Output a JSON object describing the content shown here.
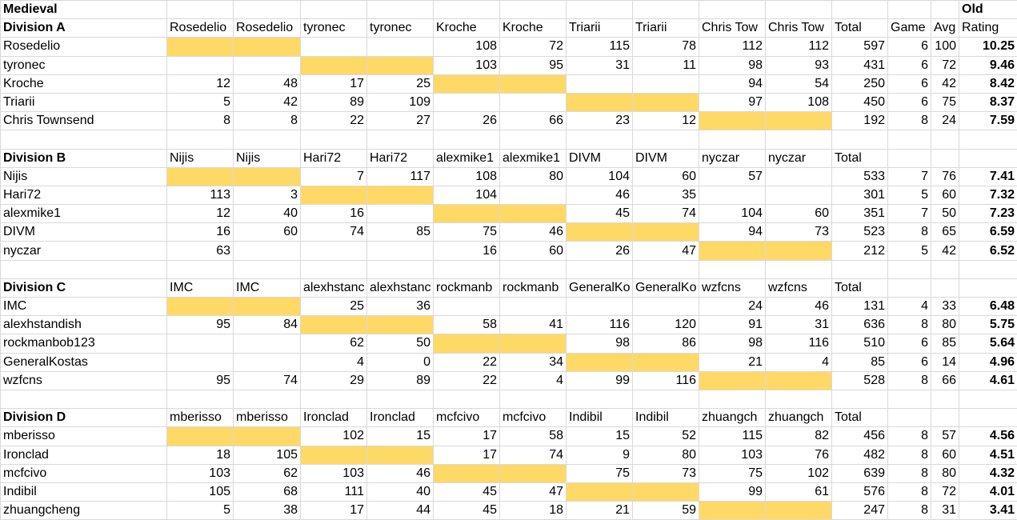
{
  "sheet": {
    "title": "Medieval",
    "top_right": "Old",
    "extra_headers": [
      "Game",
      "Avg",
      "Rating"
    ],
    "divisions": [
      {
        "title": "Division A",
        "columns": [
          "Rosedelio",
          "Rosedelio",
          "tyronec",
          "tyronec",
          "Kroche",
          "Kroche",
          "Triarii",
          "Triarii",
          "Chris Tow",
          "Chris Tow",
          "Total"
        ],
        "rows": [
          {
            "name": "Rosedelio",
            "scores": [
              null,
              null,
              null,
              null,
              108,
              72,
              115,
              78,
              112,
              112
            ],
            "total": 597,
            "games": 6,
            "avg": 100,
            "rating": 10.25
          },
          {
            "name": "tyronec",
            "scores": [
              null,
              null,
              null,
              null,
              103,
              95,
              31,
              11,
              98,
              93
            ],
            "total": 431,
            "games": 6,
            "avg": 72,
            "rating": 9.46
          },
          {
            "name": "Kroche",
            "scores": [
              12,
              48,
              17,
              25,
              null,
              null,
              null,
              null,
              94,
              54
            ],
            "total": 250,
            "games": 6,
            "avg": 42,
            "rating": 8.42
          },
          {
            "name": "Triarii",
            "scores": [
              5,
              42,
              89,
              109,
              null,
              null,
              null,
              null,
              97,
              108
            ],
            "total": 450,
            "games": 6,
            "avg": 75,
            "rating": 8.37
          },
          {
            "name": "Chris Townsend",
            "scores": [
              8,
              8,
              22,
              27,
              26,
              66,
              23,
              12,
              null,
              null
            ],
            "total": 192,
            "games": 8,
            "avg": 24,
            "rating": 7.59
          }
        ]
      },
      {
        "title": "Division B",
        "columns": [
          "Nijis",
          "Nijis",
          "Hari72",
          "Hari72",
          "alexmike1",
          "alexmike1",
          "DIVM",
          "DIVM",
          "nyczar",
          "nyczar",
          "Total"
        ],
        "rows": [
          {
            "name": "Nijis",
            "scores": [
              null,
              null,
              7,
              117,
              108,
              80,
              104,
              60,
              57,
              null
            ],
            "total": 533,
            "games": 7,
            "avg": 76,
            "rating": 7.41
          },
          {
            "name": "Hari72",
            "scores": [
              113,
              3,
              null,
              null,
              104,
              null,
              46,
              35,
              null,
              null
            ],
            "total": 301,
            "games": 5,
            "avg": 60,
            "rating": 7.32
          },
          {
            "name": "alexmike1",
            "scores": [
              12,
              40,
              16,
              null,
              null,
              null,
              45,
              74,
              104,
              60
            ],
            "total": 351,
            "games": 7,
            "avg": 50,
            "rating": 7.23
          },
          {
            "name": "DIVM",
            "scores": [
              16,
              60,
              74,
              85,
              75,
              46,
              null,
              null,
              94,
              73
            ],
            "total": 523,
            "games": 8,
            "avg": 65,
            "rating": 6.59
          },
          {
            "name": "nyczar",
            "scores": [
              63,
              null,
              null,
              null,
              16,
              60,
              26,
              47,
              null,
              null
            ],
            "total": 212,
            "games": 5,
            "avg": 42,
            "rating": 6.52
          }
        ]
      },
      {
        "title": "Division C",
        "columns": [
          "IMC",
          "IMC",
          "alexhstanc",
          "alexhstanc",
          "rockmanb",
          "rockmanb",
          "GeneralKo",
          "GeneralKo",
          "wzfcns",
          "wzfcns",
          "Total"
        ],
        "rows": [
          {
            "name": "IMC",
            "scores": [
              null,
              null,
              25,
              36,
              null,
              null,
              null,
              null,
              24,
              46
            ],
            "total": 131,
            "games": 4,
            "avg": 33,
            "rating": 6.48
          },
          {
            "name": "alexhstandish",
            "scores": [
              95,
              84,
              null,
              null,
              58,
              41,
              116,
              120,
              91,
              31
            ],
            "total": 636,
            "games": 8,
            "avg": 80,
            "rating": 5.75
          },
          {
            "name": "rockmanbob123",
            "scores": [
              null,
              null,
              62,
              50,
              null,
              null,
              98,
              86,
              98,
              116
            ],
            "total": 510,
            "games": 6,
            "avg": 85,
            "rating": 5.64
          },
          {
            "name": "GeneralKostas",
            "scores": [
              null,
              null,
              4,
              0,
              22,
              34,
              null,
              null,
              21,
              4
            ],
            "total": 85,
            "games": 6,
            "avg": 14,
            "rating": 4.96
          },
          {
            "name": "wzfcns",
            "scores": [
              95,
              74,
              29,
              89,
              22,
              4,
              99,
              116,
              null,
              null
            ],
            "total": 528,
            "games": 8,
            "avg": 66,
            "rating": 4.61
          }
        ]
      },
      {
        "title": "Division D",
        "columns": [
          "mberisso",
          "mberisso",
          "Ironclad",
          "Ironclad",
          "mcfcivo",
          "mcfcivo",
          "Indibil",
          "Indibil",
          "zhuangch",
          "zhuangch",
          "Total"
        ],
        "rows": [
          {
            "name": "mberisso",
            "scores": [
              null,
              null,
              102,
              15,
              17,
              58,
              15,
              52,
              115,
              82
            ],
            "total": 456,
            "games": 8,
            "avg": 57,
            "rating": 4.56
          },
          {
            "name": "Ironclad",
            "scores": [
              18,
              105,
              null,
              null,
              17,
              74,
              9,
              80,
              103,
              76
            ],
            "total": 482,
            "games": 8,
            "avg": 60,
            "rating": 4.51
          },
          {
            "name": "mcfcivo",
            "scores": [
              103,
              62,
              103,
              46,
              null,
              null,
              75,
              73,
              75,
              102
            ],
            "total": 639,
            "games": 8,
            "avg": 80,
            "rating": 4.32
          },
          {
            "name": "Indibil",
            "scores": [
              105,
              68,
              111,
              40,
              45,
              47,
              null,
              null,
              99,
              61
            ],
            "total": 576,
            "games": 8,
            "avg": 72,
            "rating": 4.01
          },
          {
            "name": "zhuangcheng",
            "scores": [
              5,
              38,
              17,
              44,
              45,
              18,
              21,
              59,
              null,
              null
            ],
            "total": 247,
            "games": 8,
            "avg": 31,
            "rating": 3.41
          }
        ]
      }
    ]
  }
}
